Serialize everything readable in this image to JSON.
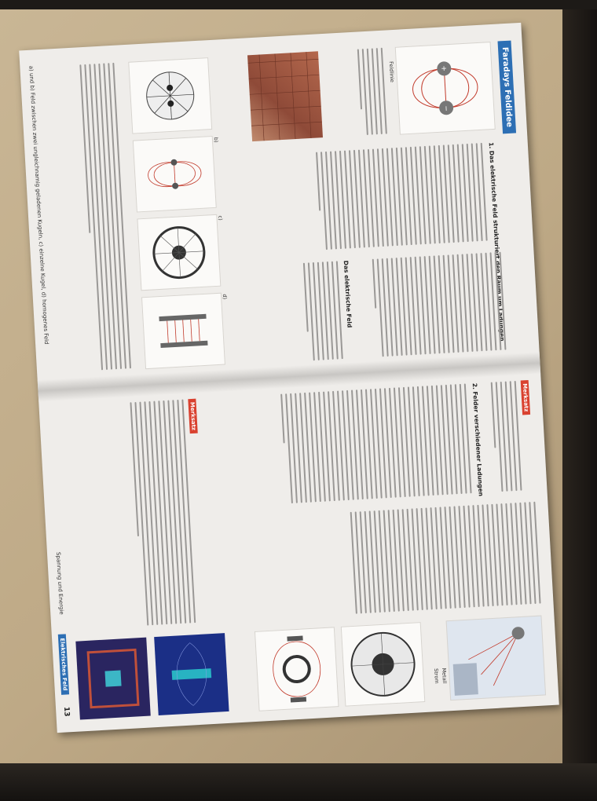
{
  "scene": {
    "description_colors": {
      "board": "#c6b290",
      "paper": "#efedea",
      "accent": "#2d6fb4",
      "tag": "#d9412f"
    }
  },
  "left_page": {
    "title": "Faradays Feldidee",
    "section_1_heading": "1. Das elektrische Feld strukturiert den Raum um Ladungen",
    "field_line_label": "Feldlinie",
    "sub_heading": "Das elektrische Feld",
    "caption_b": "b)",
    "caption_c": "c)",
    "caption_d": "d)",
    "footer": "a) und b) Feld zwischen zwei ungleichnamig geladenen Kugeln, c) einzelne Kugel, d) homogenes Feld"
  },
  "right_page": {
    "merksatz": "Merksatz",
    "section_2_heading": "2. Felder verschiedener Ladungen",
    "metall_label": "Metall",
    "strom_label": "Strom",
    "footer_tag": "Elektrisches Feld",
    "page_number": "13",
    "footer_text": "Spannung und Energie"
  }
}
